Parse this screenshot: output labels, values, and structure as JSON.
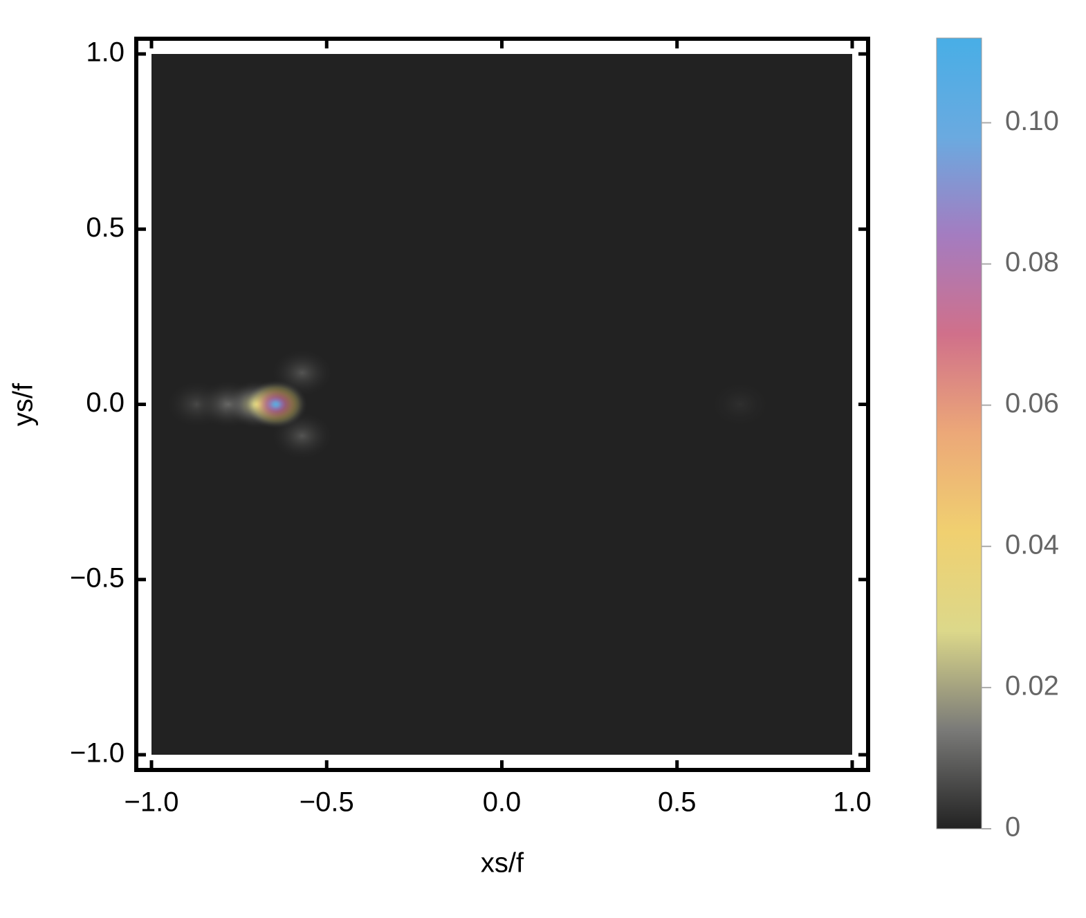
{
  "chart_data": {
    "type": "density",
    "xlabel": "xs/f",
    "ylabel": "ys/f",
    "x": [
      0.68,
      -0.87,
      -0.78,
      -0.57,
      -0.57,
      -0.7,
      -0.645
    ],
    "y": [
      0,
      0,
      0,
      0.09,
      -0.09,
      0,
      0
    ],
    "values": [
      0.002,
      0.006,
      0.012,
      0.008,
      0.008,
      0.03,
      0.105
    ],
    "xlim": [
      -1,
      1
    ],
    "ylim": [
      -1,
      1
    ],
    "xticks": [
      {
        "value": -1,
        "label": "−1.0"
      },
      {
        "value": -0.5,
        "label": "−0.5"
      },
      {
        "value": 0,
        "label": "0.0"
      },
      0.5,
      {
        "value": 1,
        "label": "1.0"
      }
    ],
    "yticks": [
      {
        "value": -1,
        "label": "−1.0"
      },
      {
        "value": -0.5,
        "label": "−0.5"
      },
      {
        "value": 0,
        "label": "0.0"
      },
      0.5,
      {
        "value": 1,
        "label": "1.0"
      }
    ],
    "clim": [
      0,
      0.112
    ],
    "cticks": [
      0,
      0.02,
      0.04,
      0.06,
      0.08,
      {
        "value": 0.1,
        "label": "0.10"
      }
    ],
    "colormap": [
      "#222222",
      "#7a7a78",
      "#dcd88a",
      "#f0d070",
      "#eca878",
      "#d0708a",
      "#a47cc0",
      "#6aaae0",
      "#48aee6"
    ],
    "frame_color": "#000000"
  }
}
